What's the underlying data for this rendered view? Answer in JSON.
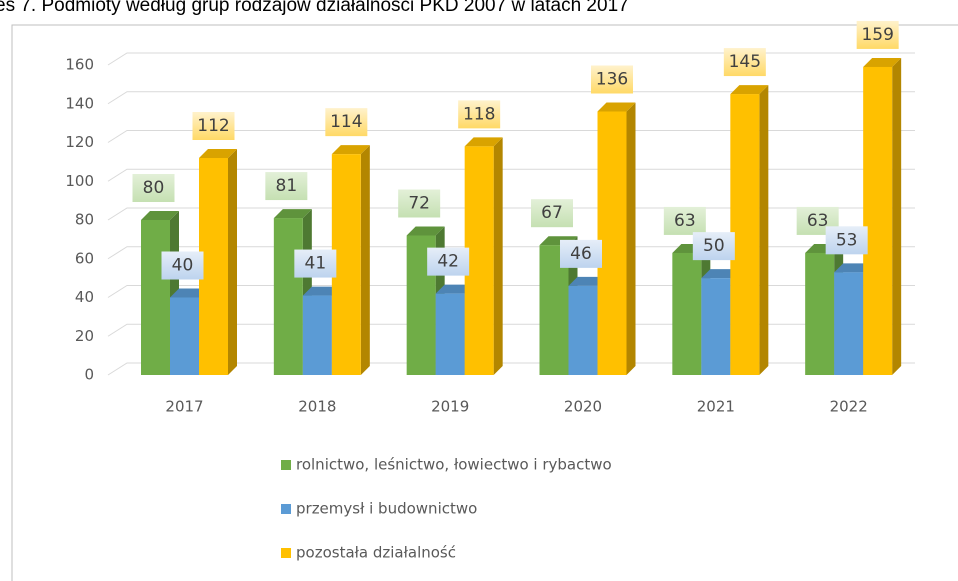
{
  "chart_data": {
    "type": "bar",
    "title": "es 7. Podmioty według grup rodzajów działalności PKD 2007 w latach 2017",
    "categories": [
      "2017",
      "2018",
      "2019",
      "2020",
      "2021",
      "2022"
    ],
    "series": [
      {
        "name": "rolnictwo, leśnictwo, łowiectwo i rybactwo",
        "color": "#70ad47",
        "values": [
          80,
          81,
          72,
          67,
          63,
          63
        ]
      },
      {
        "name": "przemysł i budownictwo",
        "color": "#5b9bd5",
        "values": [
          40,
          41,
          42,
          46,
          50,
          53
        ]
      },
      {
        "name": "pozostała działalność",
        "color": "#ffc000",
        "values": [
          112,
          114,
          118,
          136,
          145,
          159
        ]
      }
    ],
    "ylim": [
      0,
      160
    ],
    "yticks": [
      0,
      20,
      40,
      60,
      80,
      100,
      120,
      140,
      160
    ],
    "grid": true,
    "legend": "bottom"
  }
}
